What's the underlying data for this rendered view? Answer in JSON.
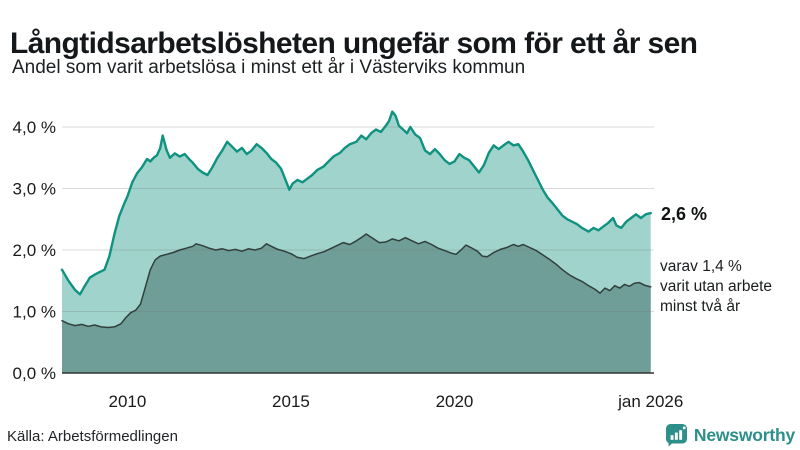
{
  "header": {
    "title": "Långtidsarbetslösheten ungefär som för ett år sen",
    "subtitle": "Andel som varit arbetslösa i minst ett år i Västerviks kommun"
  },
  "annotations": {
    "primary_value": "2,6 %",
    "secondary_lines": [
      "varav 1,4 %",
      "varit utan arbete",
      "minst två år"
    ]
  },
  "source": {
    "text": "Källa: Arbetsförmedlingen"
  },
  "logo": {
    "text": "Newsworthy",
    "icon": "bar-chart-speech-bubble-icon",
    "color": "#2c8f8a"
  },
  "colors": {
    "background": "#ffffff",
    "title_text": "#14181a",
    "series1_line": "#109280",
    "series1_fill": "#9fd3cc",
    "series2_line": "#323f3c",
    "series2_fill": "#6f9d97",
    "gridline": "rgba(120,120,120,0.27)",
    "axis_line": "#333333",
    "tick_text": "#1a1a1a",
    "brand_teal": "#2c8f8a"
  },
  "chart_data": {
    "type": "area",
    "title": "Långtidsarbetslösheten ungefär som för ett år sen",
    "subtitle": "Andel som varit arbetslösa i minst ett år i Västerviks kommun",
    "legend_position": "none",
    "grid": true,
    "x_axis": {
      "range": [
        2008.0,
        2026.1
      ],
      "ticks": [
        {
          "label": "2010",
          "x": 2010
        },
        {
          "label": "2015",
          "x": 2015
        },
        {
          "label": "2020",
          "x": 2020
        },
        {
          "label": "jan 2026",
          "x": 2026.0
        }
      ]
    },
    "y_axis": {
      "range": [
        0,
        4.4
      ],
      "unit": "%",
      "ticks": [
        {
          "label": "0,0 %",
          "v": 0
        },
        {
          "label": "1,0 %",
          "v": 1
        },
        {
          "label": "2,0 %",
          "v": 2
        },
        {
          "label": "3,0 %",
          "v": 3
        },
        {
          "label": "4,0 %",
          "v": 4
        }
      ]
    },
    "series": [
      {
        "name": "Arbetslösa minst ett år",
        "end_label": "2,6 %",
        "end_value": 2.6,
        "line_color": "#109280",
        "fill_color": "#9fd3cc",
        "line_width": 2.4,
        "points": [
          [
            2008.0,
            1.68
          ],
          [
            2008.2,
            1.5
          ],
          [
            2008.4,
            1.35
          ],
          [
            2008.55,
            1.28
          ],
          [
            2008.7,
            1.42
          ],
          [
            2008.85,
            1.55
          ],
          [
            2009.0,
            1.6
          ],
          [
            2009.15,
            1.64
          ],
          [
            2009.3,
            1.68
          ],
          [
            2009.45,
            1.9
          ],
          [
            2009.6,
            2.25
          ],
          [
            2009.75,
            2.55
          ],
          [
            2009.9,
            2.75
          ],
          [
            2010.0,
            2.87
          ],
          [
            2010.15,
            3.1
          ],
          [
            2010.3,
            3.25
          ],
          [
            2010.45,
            3.35
          ],
          [
            2010.6,
            3.48
          ],
          [
            2010.7,
            3.44
          ],
          [
            2010.8,
            3.5
          ],
          [
            2010.9,
            3.54
          ],
          [
            2011.0,
            3.65
          ],
          [
            2011.08,
            3.86
          ],
          [
            2011.2,
            3.62
          ],
          [
            2011.3,
            3.5
          ],
          [
            2011.45,
            3.57
          ],
          [
            2011.6,
            3.52
          ],
          [
            2011.75,
            3.56
          ],
          [
            2011.9,
            3.47
          ],
          [
            2012.0,
            3.42
          ],
          [
            2012.15,
            3.32
          ],
          [
            2012.3,
            3.26
          ],
          [
            2012.45,
            3.22
          ],
          [
            2012.6,
            3.35
          ],
          [
            2012.75,
            3.5
          ],
          [
            2012.9,
            3.62
          ],
          [
            2013.05,
            3.76
          ],
          [
            2013.2,
            3.68
          ],
          [
            2013.35,
            3.6
          ],
          [
            2013.5,
            3.66
          ],
          [
            2013.65,
            3.56
          ],
          [
            2013.8,
            3.62
          ],
          [
            2013.95,
            3.72
          ],
          [
            2014.1,
            3.66
          ],
          [
            2014.25,
            3.58
          ],
          [
            2014.4,
            3.48
          ],
          [
            2014.55,
            3.42
          ],
          [
            2014.7,
            3.32
          ],
          [
            2014.85,
            3.12
          ],
          [
            2014.95,
            2.98
          ],
          [
            2015.05,
            3.08
          ],
          [
            2015.2,
            3.14
          ],
          [
            2015.35,
            3.1
          ],
          [
            2015.5,
            3.16
          ],
          [
            2015.65,
            3.22
          ],
          [
            2015.8,
            3.3
          ],
          [
            2016.0,
            3.36
          ],
          [
            2016.15,
            3.44
          ],
          [
            2016.3,
            3.52
          ],
          [
            2016.5,
            3.58
          ],
          [
            2016.65,
            3.66
          ],
          [
            2016.8,
            3.72
          ],
          [
            2017.0,
            3.76
          ],
          [
            2017.15,
            3.86
          ],
          [
            2017.3,
            3.8
          ],
          [
            2017.45,
            3.9
          ],
          [
            2017.6,
            3.96
          ],
          [
            2017.75,
            3.92
          ],
          [
            2017.9,
            4.02
          ],
          [
            2018.0,
            4.1
          ],
          [
            2018.1,
            4.25
          ],
          [
            2018.2,
            4.18
          ],
          [
            2018.3,
            4.02
          ],
          [
            2018.45,
            3.95
          ],
          [
            2018.55,
            3.9
          ],
          [
            2018.65,
            4.0
          ],
          [
            2018.8,
            3.88
          ],
          [
            2018.95,
            3.82
          ],
          [
            2019.1,
            3.62
          ],
          [
            2019.25,
            3.56
          ],
          [
            2019.4,
            3.64
          ],
          [
            2019.55,
            3.56
          ],
          [
            2019.7,
            3.46
          ],
          [
            2019.85,
            3.4
          ],
          [
            2020.0,
            3.44
          ],
          [
            2020.15,
            3.56
          ],
          [
            2020.3,
            3.5
          ],
          [
            2020.45,
            3.46
          ],
          [
            2020.6,
            3.36
          ],
          [
            2020.75,
            3.26
          ],
          [
            2020.9,
            3.38
          ],
          [
            2021.05,
            3.58
          ],
          [
            2021.2,
            3.7
          ],
          [
            2021.35,
            3.64
          ],
          [
            2021.5,
            3.7
          ],
          [
            2021.65,
            3.76
          ],
          [
            2021.8,
            3.7
          ],
          [
            2021.95,
            3.72
          ],
          [
            2022.1,
            3.6
          ],
          [
            2022.25,
            3.46
          ],
          [
            2022.4,
            3.3
          ],
          [
            2022.55,
            3.14
          ],
          [
            2022.7,
            2.98
          ],
          [
            2022.85,
            2.85
          ],
          [
            2023.0,
            2.76
          ],
          [
            2023.15,
            2.66
          ],
          [
            2023.3,
            2.56
          ],
          [
            2023.45,
            2.5
          ],
          [
            2023.6,
            2.46
          ],
          [
            2023.75,
            2.42
          ],
          [
            2023.9,
            2.36
          ],
          [
            2024.1,
            2.3
          ],
          [
            2024.25,
            2.36
          ],
          [
            2024.4,
            2.32
          ],
          [
            2024.55,
            2.38
          ],
          [
            2024.7,
            2.44
          ],
          [
            2024.85,
            2.52
          ],
          [
            2024.95,
            2.4
          ],
          [
            2025.1,
            2.36
          ],
          [
            2025.25,
            2.46
          ],
          [
            2025.4,
            2.52
          ],
          [
            2025.55,
            2.58
          ],
          [
            2025.7,
            2.52
          ],
          [
            2025.85,
            2.58
          ],
          [
            2026.0,
            2.6
          ]
        ]
      },
      {
        "name": "Utan arbete minst två år",
        "end_label": "varav 1,4 % varit utan arbete minst två år",
        "end_value": 1.4,
        "line_color": "#323f3c",
        "fill_color": "#6f9d97",
        "line_width": 1.5,
        "points": [
          [
            2008.0,
            0.85
          ],
          [
            2008.2,
            0.8
          ],
          [
            2008.4,
            0.77
          ],
          [
            2008.6,
            0.79
          ],
          [
            2008.8,
            0.76
          ],
          [
            2009.0,
            0.78
          ],
          [
            2009.2,
            0.75
          ],
          [
            2009.4,
            0.74
          ],
          [
            2009.6,
            0.75
          ],
          [
            2009.8,
            0.8
          ],
          [
            2009.95,
            0.9
          ],
          [
            2010.1,
            0.98
          ],
          [
            2010.25,
            1.02
          ],
          [
            2010.4,
            1.12
          ],
          [
            2010.55,
            1.4
          ],
          [
            2010.7,
            1.68
          ],
          [
            2010.85,
            1.84
          ],
          [
            2011.0,
            1.9
          ],
          [
            2011.2,
            1.93
          ],
          [
            2011.4,
            1.96
          ],
          [
            2011.6,
            2.0
          ],
          [
            2011.8,
            2.03
          ],
          [
            2012.0,
            2.06
          ],
          [
            2012.1,
            2.1
          ],
          [
            2012.3,
            2.07
          ],
          [
            2012.5,
            2.03
          ],
          [
            2012.7,
            2.0
          ],
          [
            2012.9,
            2.02
          ],
          [
            2013.1,
            1.99
          ],
          [
            2013.3,
            2.01
          ],
          [
            2013.5,
            1.98
          ],
          [
            2013.7,
            2.02
          ],
          [
            2013.9,
            2.0
          ],
          [
            2014.1,
            2.03
          ],
          [
            2014.25,
            2.1
          ],
          [
            2014.4,
            2.06
          ],
          [
            2014.6,
            2.01
          ],
          [
            2014.8,
            1.98
          ],
          [
            2015.0,
            1.94
          ],
          [
            2015.2,
            1.88
          ],
          [
            2015.4,
            1.86
          ],
          [
            2015.6,
            1.9
          ],
          [
            2015.8,
            1.94
          ],
          [
            2016.0,
            1.97
          ],
          [
            2016.2,
            2.02
          ],
          [
            2016.4,
            2.07
          ],
          [
            2016.6,
            2.12
          ],
          [
            2016.8,
            2.09
          ],
          [
            2017.0,
            2.15
          ],
          [
            2017.2,
            2.22
          ],
          [
            2017.3,
            2.26
          ],
          [
            2017.5,
            2.19
          ],
          [
            2017.7,
            2.12
          ],
          [
            2017.9,
            2.13
          ],
          [
            2018.1,
            2.18
          ],
          [
            2018.3,
            2.15
          ],
          [
            2018.5,
            2.2
          ],
          [
            2018.7,
            2.15
          ],
          [
            2018.9,
            2.1
          ],
          [
            2019.1,
            2.14
          ],
          [
            2019.3,
            2.09
          ],
          [
            2019.5,
            2.03
          ],
          [
            2019.7,
            1.99
          ],
          [
            2019.9,
            1.95
          ],
          [
            2020.05,
            1.93
          ],
          [
            2020.2,
            2.0
          ],
          [
            2020.35,
            2.08
          ],
          [
            2020.5,
            2.04
          ],
          [
            2020.7,
            1.98
          ],
          [
            2020.85,
            1.9
          ],
          [
            2021.0,
            1.89
          ],
          [
            2021.2,
            1.96
          ],
          [
            2021.4,
            2.01
          ],
          [
            2021.6,
            2.04
          ],
          [
            2021.8,
            2.09
          ],
          [
            2021.95,
            2.06
          ],
          [
            2022.1,
            2.09
          ],
          [
            2022.3,
            2.04
          ],
          [
            2022.5,
            1.99
          ],
          [
            2022.7,
            1.92
          ],
          [
            2022.9,
            1.85
          ],
          [
            2023.1,
            1.77
          ],
          [
            2023.3,
            1.68
          ],
          [
            2023.5,
            1.6
          ],
          [
            2023.7,
            1.54
          ],
          [
            2023.9,
            1.49
          ],
          [
            2024.1,
            1.42
          ],
          [
            2024.3,
            1.36
          ],
          [
            2024.45,
            1.3
          ],
          [
            2024.6,
            1.38
          ],
          [
            2024.75,
            1.34
          ],
          [
            2024.9,
            1.42
          ],
          [
            2025.05,
            1.38
          ],
          [
            2025.2,
            1.44
          ],
          [
            2025.35,
            1.41
          ],
          [
            2025.5,
            1.46
          ],
          [
            2025.65,
            1.47
          ],
          [
            2025.8,
            1.43
          ],
          [
            2026.0,
            1.4
          ]
        ]
      }
    ]
  }
}
